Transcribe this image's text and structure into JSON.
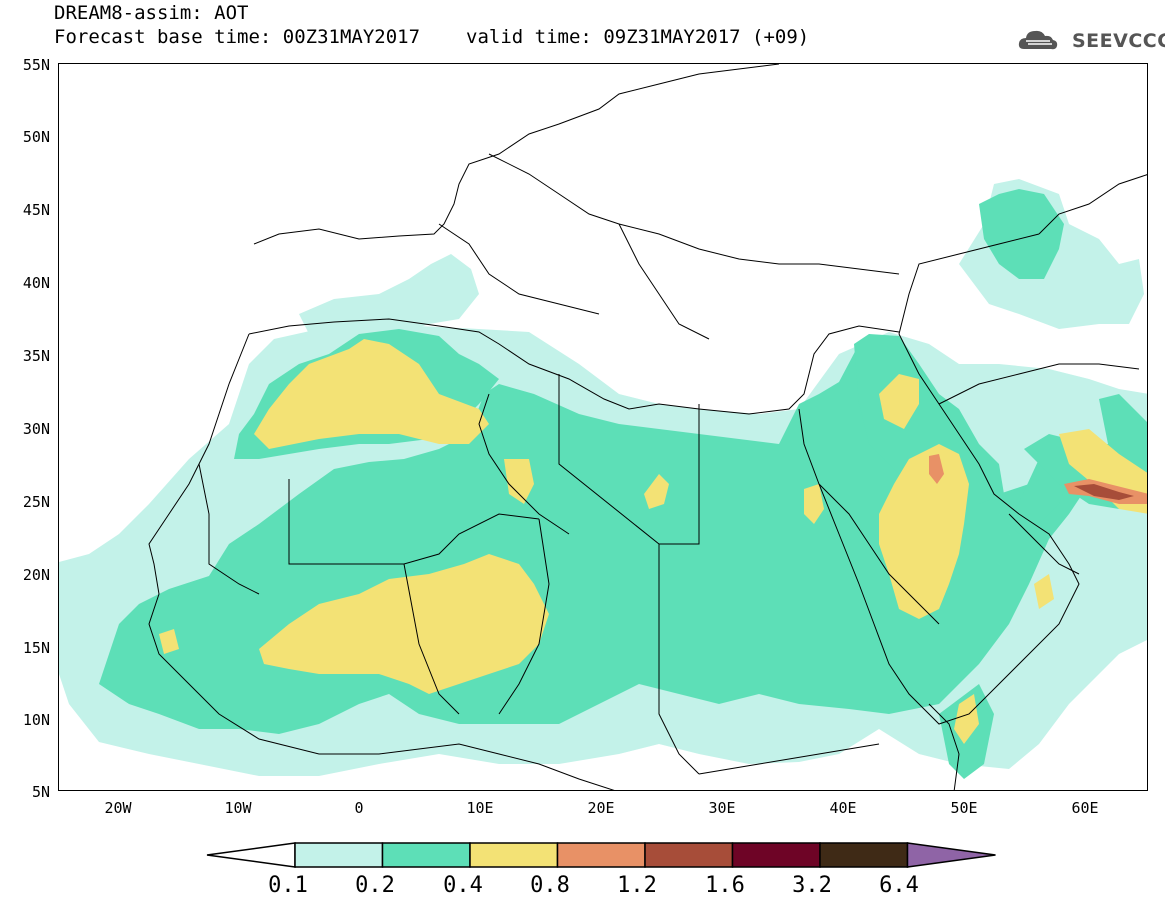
{
  "header": {
    "title": "DREAM8-assim: AOT",
    "base_time": "Forecast base time: 00Z31MAY2017",
    "valid_time": "valid time: 09Z31MAY2017 (+09)",
    "logo_text": "SEEVCCC"
  },
  "axes": {
    "lat_labels": [
      "55N",
      "50N",
      "45N",
      "40N",
      "35N",
      "30N",
      "25N",
      "20N",
      "15N",
      "10N",
      "5N"
    ],
    "lon_labels": [
      "20W",
      "10W",
      "0",
      "10E",
      "20E",
      "30E",
      "40E",
      "50E",
      "60E"
    ]
  },
  "legend": {
    "labels": [
      "0.1",
      "0.2",
      "0.4",
      "0.8",
      "1.2",
      "1.6",
      "3.2",
      "6.4"
    ],
    "colors": [
      "#ffffff",
      "#c3f2e9",
      "#5ddfb7",
      "#f3e275",
      "#e89166",
      "#a74d39",
      "#6e0426",
      "#3f2a16",
      "#8f64a6"
    ]
  },
  "map": {
    "lon_range": [
      -25,
      65
    ],
    "lat_range": [
      5,
      55
    ],
    "colors": {
      "low": "#c3f2e9",
      "mid": "#5ddfb7",
      "high": "#f3e275",
      "vhigh": "#e89166",
      "xhigh": "#a74d39"
    }
  }
}
